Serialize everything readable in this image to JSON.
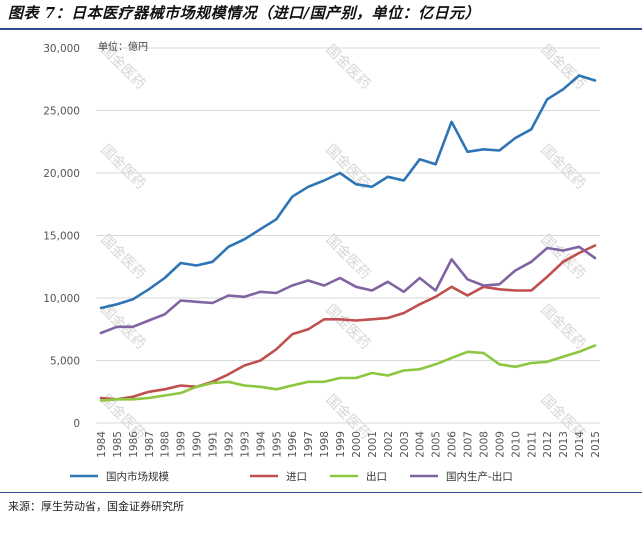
{
  "figure": {
    "title": "图表 7：日本医疗器械市场规模情况（进口/国产别，单位：亿日元）",
    "source": "来源：厚生劳动省，国金证券研究所",
    "watermark": "国金医药"
  },
  "chart_data": {
    "type": "line",
    "unit_label": "单位：億円",
    "categories": [
      "1984",
      "1985",
      "1986",
      "1987",
      "1988",
      "1989",
      "1990",
      "1991",
      "1992",
      "1993",
      "1994",
      "1995",
      "1996",
      "1997",
      "1998",
      "1999",
      "2000",
      "2001",
      "2002",
      "2003",
      "2004",
      "2005",
      "2006",
      "2007",
      "2008",
      "2009",
      "2010",
      "2011",
      "2012",
      "2013",
      "2014",
      "2015"
    ],
    "ylim": [
      0,
      30000
    ],
    "yticks": [
      0,
      5000,
      10000,
      15000,
      20000,
      25000,
      30000
    ],
    "ytick_labels": [
      "0",
      "5,000",
      "10,000",
      "15,000",
      "20,000",
      "25,000",
      "30,000"
    ],
    "grid": true,
    "legend_position": "bottom",
    "series": [
      {
        "name": "国内市场规模",
        "color": "#2e75b6",
        "values": [
          9200,
          9500,
          9900,
          10700,
          11600,
          12800,
          12600,
          12900,
          14100,
          14700,
          15500,
          16300,
          18100,
          18900,
          19400,
          20000,
          19100,
          18900,
          19700,
          19400,
          21100,
          20700,
          24100,
          21700,
          21900,
          21800,
          22800,
          23500,
          25900,
          26700,
          27800,
          27400
        ]
      },
      {
        "name": "进口",
        "color": "#c0504d",
        "values": [
          2000,
          1900,
          2100,
          2500,
          2700,
          3000,
          2900,
          3300,
          3900,
          4600,
          5000,
          5900,
          7100,
          7500,
          8300,
          8300,
          8200,
          8300,
          8400,
          8800,
          9500,
          10100,
          10900,
          10200,
          10900,
          10700,
          10600,
          10600,
          11700,
          12900,
          13600,
          14200
        ]
      },
      {
        "name": "出口",
        "color": "#8dc63f",
        "values": [
          1800,
          1900,
          1900,
          2000,
          2200,
          2400,
          2900,
          3200,
          3300,
          3000,
          2900,
          2700,
          3000,
          3300,
          3300,
          3600,
          3600,
          4000,
          3800,
          4200,
          4300,
          4700,
          5200,
          5700,
          5600,
          4700,
          4500,
          4800,
          4900,
          5300,
          5700,
          6200
        ]
      },
      {
        "name": "国内生产-出口",
        "color": "#8064a2",
        "values": [
          7200,
          7700,
          7700,
          8200,
          8700,
          9800,
          9700,
          9600,
          10200,
          10100,
          10500,
          10400,
          11000,
          11400,
          11000,
          11600,
          10900,
          10600,
          11300,
          10500,
          11600,
          10600,
          13100,
          11500,
          11000,
          11100,
          12200,
          12900,
          14000,
          13800,
          14100,
          13200
        ]
      }
    ]
  }
}
